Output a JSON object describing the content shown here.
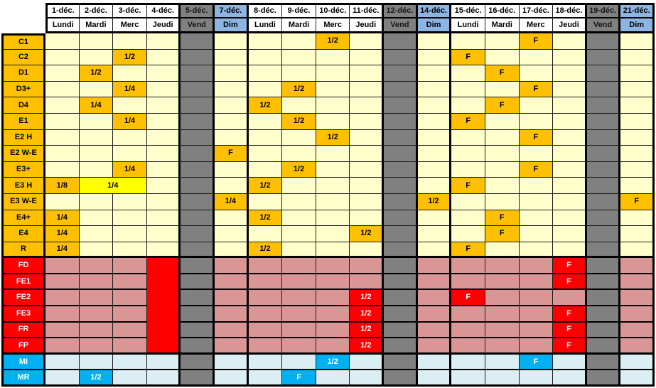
{
  "table": {
    "columns": [
      {
        "date": "1-déc.",
        "day": "Lundi",
        "kind": "weekday"
      },
      {
        "date": "2-déc.",
        "day": "Mardi",
        "kind": "weekday"
      },
      {
        "date": "3-déc.",
        "day": "Merc",
        "kind": "weekday"
      },
      {
        "date": "4-déc.",
        "day": "Jeudi",
        "kind": "weekday"
      },
      {
        "date": "5-déc.",
        "day": "Vend",
        "kind": "friday"
      },
      {
        "date": "7-déc.",
        "day": "Dim",
        "kind": "sunday"
      },
      {
        "date": "8-déc.",
        "day": "Lundi",
        "kind": "weekday"
      },
      {
        "date": "9-déc.",
        "day": "Mardi",
        "kind": "weekday"
      },
      {
        "date": "10-déc.",
        "day": "Merc",
        "kind": "weekday"
      },
      {
        "date": "11-déc.",
        "day": "Jeudi",
        "kind": "weekday"
      },
      {
        "date": "12-déc.",
        "day": "Vend",
        "kind": "friday"
      },
      {
        "date": "14-déc.",
        "day": "Dim",
        "kind": "sunday"
      },
      {
        "date": "15-déc.",
        "day": "Lundi",
        "kind": "weekday"
      },
      {
        "date": "16-déc.",
        "day": "Mardi",
        "kind": "weekday"
      },
      {
        "date": "17-déc.",
        "day": "Merc",
        "kind": "weekday"
      },
      {
        "date": "18-déc.",
        "day": "Jeudi",
        "kind": "weekday"
      },
      {
        "date": "19-déc.",
        "day": "Vend",
        "kind": "friday"
      },
      {
        "date": "21-déc.",
        "day": "Dim",
        "kind": "sunday"
      }
    ],
    "gray_columns": [
      4,
      10,
      16
    ],
    "sections": [
      {
        "id": "orange",
        "rows": [
          {
            "label": "C1",
            "marks": [
              {
                "c": 8,
                "t": "1/2"
              },
              {
                "c": 14,
                "t": "F"
              }
            ]
          },
          {
            "label": "C2",
            "marks": [
              {
                "c": 2,
                "t": "1/2"
              },
              {
                "c": 12,
                "t": "F"
              }
            ]
          },
          {
            "label": "D1",
            "marks": [
              {
                "c": 1,
                "t": "1/2"
              },
              {
                "c": 13,
                "t": "F"
              }
            ]
          },
          {
            "label": "D3+",
            "marks": [
              {
                "c": 2,
                "t": "1/4"
              },
              {
                "c": 7,
                "t": "1/2"
              },
              {
                "c": 14,
                "t": "F"
              }
            ]
          },
          {
            "label": "D4",
            "marks": [
              {
                "c": 1,
                "t": "1/4"
              },
              {
                "c": 6,
                "t": "1/2"
              },
              {
                "c": 13,
                "t": "F"
              }
            ]
          },
          {
            "label": "E1",
            "marks": [
              {
                "c": 2,
                "t": "1/4"
              },
              {
                "c": 7,
                "t": "1/2"
              },
              {
                "c": 12,
                "t": "F"
              }
            ]
          },
          {
            "label": "E2 H",
            "marks": [
              {
                "c": 8,
                "t": "1/2"
              },
              {
                "c": 14,
                "t": "F"
              }
            ]
          },
          {
            "label": "E2 W-E",
            "marks": [
              {
                "c": 5,
                "t": "F"
              }
            ]
          },
          {
            "label": "E3+",
            "marks": [
              {
                "c": 2,
                "t": "1/4"
              },
              {
                "c": 7,
                "t": "1/2"
              },
              {
                "c": 14,
                "t": "F"
              }
            ]
          },
          {
            "label": "E3 H",
            "marks": [
              {
                "c": 0,
                "t": "1/8"
              },
              {
                "c": 6,
                "t": "1/2"
              },
              {
                "c": 12,
                "t": "F"
              }
            ]
          },
          {
            "label": "E3 W-E",
            "marks": [
              {
                "c": 5,
                "t": "1/4"
              },
              {
                "c": 11,
                "t": "1/2"
              },
              {
                "c": 17,
                "t": "F"
              }
            ]
          },
          {
            "label": "E4+",
            "marks": [
              {
                "c": 0,
                "t": "1/4"
              },
              {
                "c": 6,
                "t": "1/2"
              },
              {
                "c": 13,
                "t": "F"
              }
            ]
          },
          {
            "label": "E4",
            "marks": [
              {
                "c": 0,
                "t": "1/4"
              },
              {
                "c": 9,
                "t": "1/2"
              },
              {
                "c": 13,
                "t": "F"
              }
            ]
          },
          {
            "label": "R",
            "marks": [
              {
                "c": 0,
                "t": "1/4"
              },
              {
                "c": 6,
                "t": "1/2"
              },
              {
                "c": 12,
                "t": "F"
              }
            ]
          }
        ]
      },
      {
        "id": "red",
        "rows": [
          {
            "label": "FD",
            "marks": [
              {
                "c": 15,
                "t": "F"
              }
            ]
          },
          {
            "label": "FE1",
            "marks": [
              {
                "c": 15,
                "t": "F"
              }
            ]
          },
          {
            "label": "FE2",
            "marks": [
              {
                "c": 9,
                "t": "1/2"
              },
              {
                "c": 12,
                "t": "F"
              }
            ]
          },
          {
            "label": "FE3",
            "marks": [
              {
                "c": 9,
                "t": "1/2"
              },
              {
                "c": 15,
                "t": "F"
              }
            ]
          },
          {
            "label": "FR",
            "marks": [
              {
                "c": 9,
                "t": "1/2"
              },
              {
                "c": 15,
                "t": "F"
              }
            ]
          },
          {
            "label": "FP",
            "marks": [
              {
                "c": 9,
                "t": "1/2"
              },
              {
                "c": 15,
                "t": "F"
              }
            ]
          }
        ]
      },
      {
        "id": "blue",
        "rows": [
          {
            "label": "MI",
            "marks": [
              {
                "c": 8,
                "t": "1/2"
              },
              {
                "c": 14,
                "t": "F"
              }
            ]
          },
          {
            "label": "MR",
            "marks": [
              {
                "c": 1,
                "t": "1/2"
              },
              {
                "c": 7,
                "t": "F"
              }
            ]
          }
        ]
      }
    ],
    "merged_cells": [
      {
        "row": "E3 H",
        "c": 1,
        "colspan": 2,
        "rowspan": 1,
        "t": "1/4",
        "style": "yellow"
      },
      {
        "row": "FD",
        "c": 3,
        "colspan": 1,
        "rowspan": 6,
        "t": "",
        "style": "red-block"
      }
    ]
  },
  "colors": {
    "orange": "#FFC000",
    "pale_yellow": "#FFFFCC",
    "bright_yellow": "#FFFF00",
    "red": "#FF0000",
    "pink": "#DA9694",
    "cyan": "#00B0F0",
    "pale_blue": "#DAEEF3",
    "gray": "#808080",
    "header_blue": "#8DB4E2",
    "grid_line": "#1a1a1a"
  }
}
